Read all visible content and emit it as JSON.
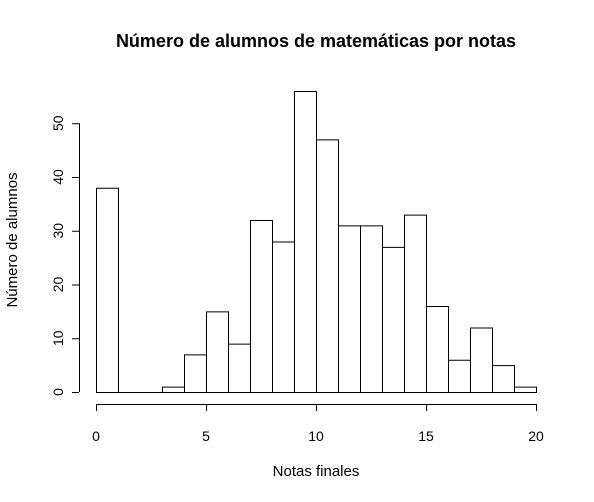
{
  "chart_data": {
    "type": "bar",
    "title": "Número de alumnos de matemáticas por notas",
    "xlabel": "Notas finales",
    "ylabel": "Número de alumnos",
    "bins": [
      [
        0,
        1
      ],
      [
        1,
        2
      ],
      [
        2,
        3
      ],
      [
        3,
        4
      ],
      [
        4,
        5
      ],
      [
        5,
        6
      ],
      [
        6,
        7
      ],
      [
        7,
        8
      ],
      [
        8,
        9
      ],
      [
        9,
        10
      ],
      [
        10,
        11
      ],
      [
        11,
        12
      ],
      [
        12,
        13
      ],
      [
        13,
        14
      ],
      [
        14,
        15
      ],
      [
        15,
        16
      ],
      [
        16,
        17
      ],
      [
        17,
        18
      ],
      [
        18,
        19
      ],
      [
        19,
        20
      ]
    ],
    "values": [
      38,
      0,
      0,
      1,
      7,
      15,
      9,
      32,
      28,
      56,
      47,
      31,
      31,
      27,
      33,
      16,
      6,
      12,
      5,
      1
    ],
    "xlim": [
      0,
      20
    ],
    "ylim": [
      0,
      56
    ],
    "xticks": [
      0,
      5,
      10,
      15,
      20
    ],
    "yticks": [
      0,
      10,
      20,
      30,
      40,
      50
    ],
    "grid": false
  }
}
